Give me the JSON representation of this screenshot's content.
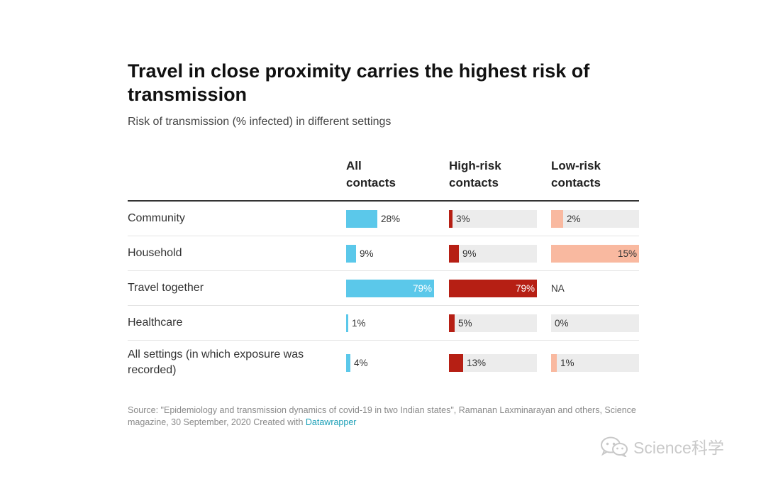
{
  "title": "Travel in close proximity carries the highest risk of transmission",
  "subtitle": "Risk of transmission (% infected) in different settings",
  "source": {
    "text": "Source: \"Epidemiology and transmission dynamics of covid-19 in two Indian states\", Ramanan Laxminarayan and others, Science magazine, 30 September, 2020",
    "created": "Created with",
    "tool": "Datawrapper"
  },
  "watermark": "Science科学",
  "colors": {
    "all_contacts": "#5bc8ea",
    "high_risk": "#b61f14",
    "low_risk": "#f9b9a0",
    "bar_background": "#ececec"
  },
  "chart_data": {
    "type": "table",
    "columns": [
      "All\ncontacts",
      "High-risk\ncontacts",
      "Low-risk\ncontacts"
    ],
    "rows": [
      {
        "label": "Community",
        "values": [
          28,
          3,
          2
        ],
        "labels": [
          "28%",
          "3%",
          "2%"
        ]
      },
      {
        "label": "Household",
        "values": [
          9,
          9,
          15
        ],
        "labels": [
          "9%",
          "9%",
          "15%"
        ]
      },
      {
        "label": "Travel together",
        "values": [
          79,
          79,
          null
        ],
        "labels": [
          "79%",
          "79%",
          "NA"
        ]
      },
      {
        "label": "Healthcare",
        "values": [
          1,
          5,
          0
        ],
        "labels": [
          "1%",
          "5%",
          "0%"
        ]
      },
      {
        "label": "All settings (in which exposure was recorded)",
        "values": [
          4,
          13,
          1
        ],
        "labels": [
          "4%",
          "13%",
          "1%"
        ]
      }
    ],
    "column_max": [
      79,
      79,
      15
    ]
  }
}
